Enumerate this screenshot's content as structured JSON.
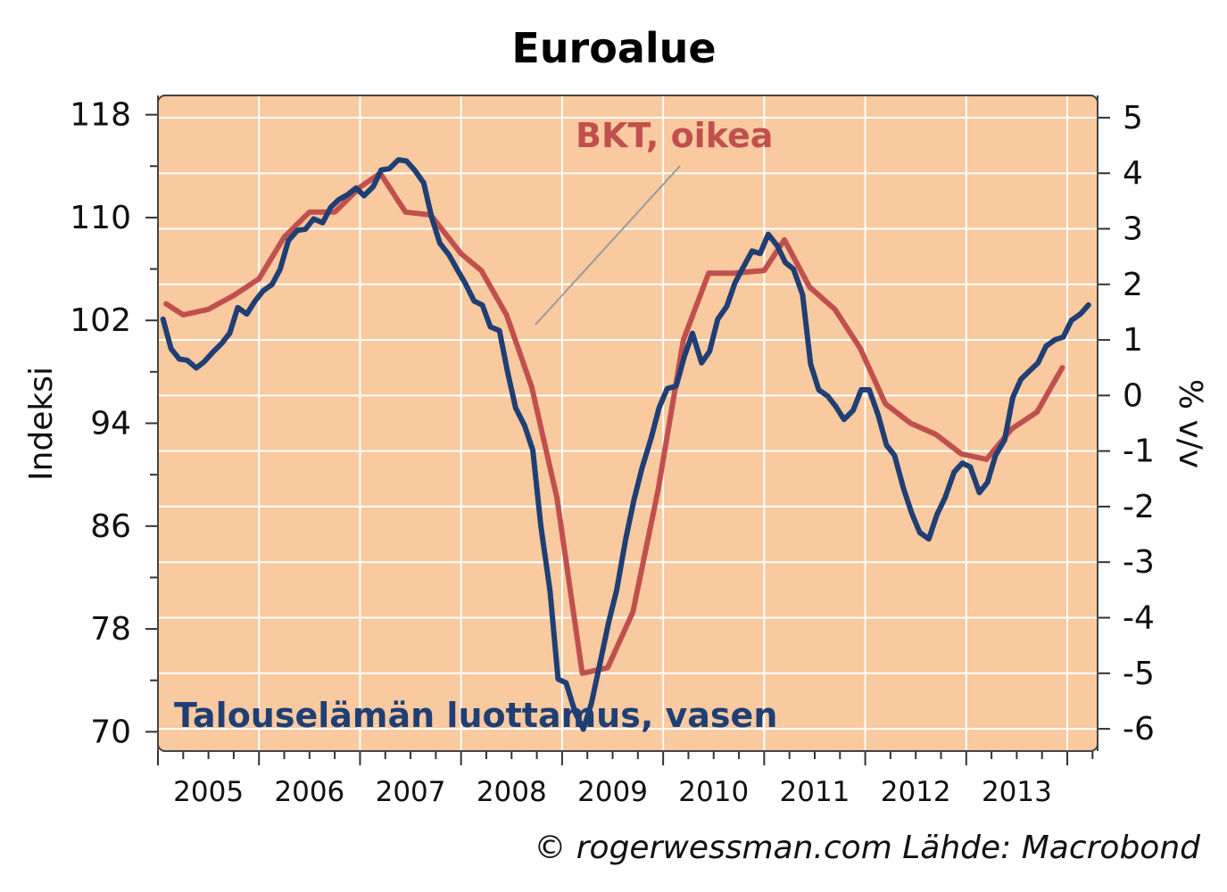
{
  "colors": {
    "plot_background": "#f9c9a0",
    "grid": "#ffffff",
    "gdp_line": "#c0504d",
    "confidence_line": "#1f3f74"
  },
  "chart_data": {
    "type": "line",
    "title": "Euroalue",
    "grid": true,
    "y_left": {
      "label": "Indeksi",
      "range": [
        68.5,
        119.5
      ],
      "ticks": [
        70,
        78,
        86,
        94,
        102,
        110,
        118
      ],
      "tick_labels": [
        "70",
        "78",
        "86",
        "94",
        "102",
        "110",
        "118"
      ]
    },
    "y_right": {
      "label": "% v/v",
      "range": [
        -6.4,
        5.4
      ],
      "ticks": [
        -6,
        -5,
        -4,
        -3,
        -2,
        -1,
        0,
        1,
        2,
        3,
        4,
        5
      ],
      "tick_labels": [
        "-6",
        "-5",
        "-4",
        "-3",
        "-2",
        "-1",
        "0",
        "1",
        "2",
        "3",
        "4",
        "5"
      ]
    },
    "x_axis": {
      "range": [
        2005.0,
        2014.3
      ],
      "year_ticks": [
        2005,
        2006,
        2007,
        2008,
        2009,
        2010,
        2011,
        2012,
        2013,
        2014
      ],
      "labels": [
        "2005",
        "2006",
        "2007",
        "2008",
        "2009",
        "2010",
        "2011",
        "2012",
        "2013"
      ]
    },
    "series": [
      {
        "name": "BKT, oikea",
        "axis": "right",
        "x": [
          2005.08,
          2005.25,
          2005.5,
          2005.75,
          2006.0,
          2006.25,
          2006.5,
          2006.75,
          2007.0,
          2007.2,
          2007.45,
          2007.7,
          2008.0,
          2008.2,
          2008.45,
          2008.7,
          2008.95,
          2009.2,
          2009.45,
          2009.7,
          2009.95,
          2010.2,
          2010.45,
          2010.7,
          2011.0,
          2011.2,
          2011.45,
          2011.7,
          2011.95,
          2012.2,
          2012.45,
          2012.7,
          2012.95,
          2013.2,
          2013.45,
          2013.7,
          2013.95
        ],
        "values": [
          1.65,
          1.45,
          1.55,
          1.8,
          2.1,
          2.85,
          3.3,
          3.3,
          3.75,
          4.0,
          3.3,
          3.25,
          2.55,
          2.25,
          1.45,
          0.15,
          -1.85,
          -5.0,
          -4.9,
          -3.9,
          -1.7,
          1.0,
          2.2,
          2.2,
          2.25,
          2.8,
          1.95,
          1.55,
          0.85,
          -0.15,
          -0.5,
          -0.7,
          -1.05,
          -1.15,
          -0.6,
          -0.3,
          0.5
        ]
      },
      {
        "name": "Talouselämän luottamus, vasen",
        "axis": "left",
        "x": [
          2005.05,
          2005.13,
          2005.21,
          2005.29,
          2005.38,
          2005.46,
          2005.54,
          2005.63,
          2005.71,
          2005.79,
          2005.88,
          2005.96,
          2006.04,
          2006.13,
          2006.21,
          2006.29,
          2006.38,
          2006.46,
          2006.54,
          2006.63,
          2006.71,
          2006.79,
          2006.88,
          2006.96,
          2007.04,
          2007.13,
          2007.21,
          2007.29,
          2007.38,
          2007.46,
          2007.54,
          2007.63,
          2007.71,
          2007.79,
          2007.88,
          2007.96,
          2008.04,
          2008.13,
          2008.21,
          2008.29,
          2008.38,
          2008.46,
          2008.54,
          2008.63,
          2008.71,
          2008.79,
          2008.88,
          2008.96,
          2009.04,
          2009.13,
          2009.21,
          2009.29,
          2009.38,
          2009.46,
          2009.54,
          2009.63,
          2009.71,
          2009.79,
          2009.88,
          2009.96,
          2010.04,
          2010.13,
          2010.21,
          2010.29,
          2010.38,
          2010.46,
          2010.54,
          2010.63,
          2010.71,
          2010.79,
          2010.88,
          2010.96,
          2011.04,
          2011.13,
          2011.21,
          2011.29,
          2011.38,
          2011.46,
          2011.54,
          2011.63,
          2011.71,
          2011.79,
          2011.88,
          2011.96,
          2012.04,
          2012.13,
          2012.21,
          2012.29,
          2012.38,
          2012.46,
          2012.54,
          2012.63,
          2012.71,
          2012.79,
          2012.88,
          2012.96,
          2013.04,
          2013.13,
          2013.21,
          2013.29,
          2013.38,
          2013.46,
          2013.54,
          2013.63,
          2013.71,
          2013.79,
          2013.88,
          2013.96,
          2014.04,
          2014.13,
          2014.21
        ],
        "values": [
          102.1,
          99.8,
          99.0,
          98.9,
          98.3,
          98.8,
          99.5,
          100.2,
          101.0,
          103.0,
          102.5,
          103.5,
          104.3,
          104.8,
          106.0,
          108.2,
          109.0,
          109.1,
          109.9,
          109.6,
          110.8,
          111.4,
          111.8,
          112.3,
          111.7,
          112.4,
          113.7,
          113.8,
          114.5,
          114.4,
          113.7,
          112.7,
          110.0,
          108.0,
          107.1,
          106.0,
          104.9,
          103.5,
          103.2,
          101.5,
          101.2,
          98.0,
          95.2,
          93.8,
          91.9,
          86.0,
          81.0,
          74.1,
          73.8,
          71.5,
          70.2,
          72.2,
          75.5,
          78.5,
          81.0,
          85.0,
          88.0,
          90.5,
          92.8,
          95.2,
          96.7,
          96.9,
          99.2,
          101.0,
          98.7,
          99.6,
          102.1,
          103.1,
          104.9,
          106.1,
          107.4,
          107.2,
          108.7,
          107.8,
          106.5,
          106.0,
          104.0,
          98.6,
          96.6,
          96.1,
          95.3,
          94.3,
          95.0,
          96.6,
          96.6,
          94.6,
          92.3,
          91.5,
          88.9,
          87.0,
          85.5,
          85.0,
          86.9,
          88.2,
          90.2,
          90.9,
          90.6,
          88.6,
          89.4,
          91.5,
          92.7,
          96.0,
          97.4,
          98.1,
          98.7,
          100.0,
          100.5,
          100.7,
          102.0,
          102.5,
          103.2
        ]
      }
    ],
    "annotations": [
      {
        "text": "BKT, oikea",
        "color": "#c0504d"
      },
      {
        "text": "Talouselämän luottamus, vasen",
        "color": "#1f3f74"
      }
    ]
  },
  "footer": {
    "credit": "© rogerwessman.com Lähde: Macrobond"
  }
}
